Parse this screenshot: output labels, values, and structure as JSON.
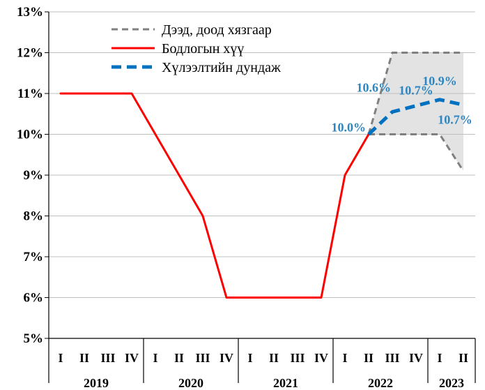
{
  "chart_data": {
    "type": "line",
    "title": "",
    "xlabel": "",
    "ylabel": "",
    "ylim": [
      5,
      13
    ],
    "yticks": [
      5,
      6,
      7,
      8,
      9,
      10,
      11,
      12,
      13
    ],
    "ytick_labels": [
      "5%",
      "6%",
      "7%",
      "8%",
      "9%",
      "10%",
      "11%",
      "12%",
      "13%"
    ],
    "x_quarters": [
      "I",
      "II",
      "III",
      "IV",
      "I",
      "II",
      "III",
      "IV",
      "I",
      "II",
      "III",
      "IV",
      "I",
      "II",
      "III",
      "IV",
      "I",
      "II"
    ],
    "x_years": [
      {
        "label": "2019",
        "quarters": 4
      },
      {
        "label": "2020",
        "quarters": 4
      },
      {
        "label": "2021",
        "quarters": 4
      },
      {
        "label": "2022",
        "quarters": 4
      },
      {
        "label": "2023",
        "quarters": 2
      }
    ],
    "legend_position": "top-center",
    "band_color": "#E3E3E3",
    "series": [
      {
        "name": "Дээд, доод хязгаар",
        "role": "upper",
        "color": "#808080",
        "style": "dashed",
        "points": [
          [
            13,
            10.0
          ],
          [
            14,
            12.0
          ],
          [
            15,
            12.0
          ],
          [
            16,
            12.0
          ],
          [
            17,
            12.0
          ]
        ]
      },
      {
        "name": "",
        "role": "lower",
        "color": "#808080",
        "style": "dashed",
        "points": [
          [
            13,
            10.0
          ],
          [
            14,
            10.0
          ],
          [
            15,
            10.0
          ],
          [
            16,
            10.0
          ],
          [
            17,
            9.1
          ]
        ]
      },
      {
        "name": "Бодлогын хүү",
        "role": "main",
        "color": "#FF0000",
        "style": "solid",
        "points": [
          [
            0,
            11
          ],
          [
            1,
            11
          ],
          [
            2,
            11
          ],
          [
            3,
            11
          ],
          [
            4,
            10
          ],
          [
            5,
            9
          ],
          [
            6,
            8
          ],
          [
            7,
            6
          ],
          [
            8,
            6
          ],
          [
            9,
            6
          ],
          [
            10,
            6
          ],
          [
            11,
            6
          ],
          [
            12,
            9
          ],
          [
            13,
            10
          ]
        ]
      },
      {
        "name": "Хүлээлтийн дундаж",
        "role": "expect",
        "color": "#0070C0",
        "style": "dashed",
        "points": [
          [
            13,
            10.0
          ],
          [
            14,
            10.55
          ],
          [
            15,
            10.7
          ],
          [
            16,
            10.85
          ],
          [
            17,
            10.72
          ]
        ]
      }
    ],
    "annotations": [
      {
        "text": "10.0%",
        "x": 13,
        "y": 10.0
      },
      {
        "text": "10.6%",
        "x": 14,
        "y": 10.6
      },
      {
        "text": "10.7%",
        "x": 15,
        "y": 10.7
      },
      {
        "text": "10.9%",
        "x": 16,
        "y": 10.9
      },
      {
        "text": "10.7%",
        "x": 17,
        "y": 10.7
      }
    ]
  }
}
